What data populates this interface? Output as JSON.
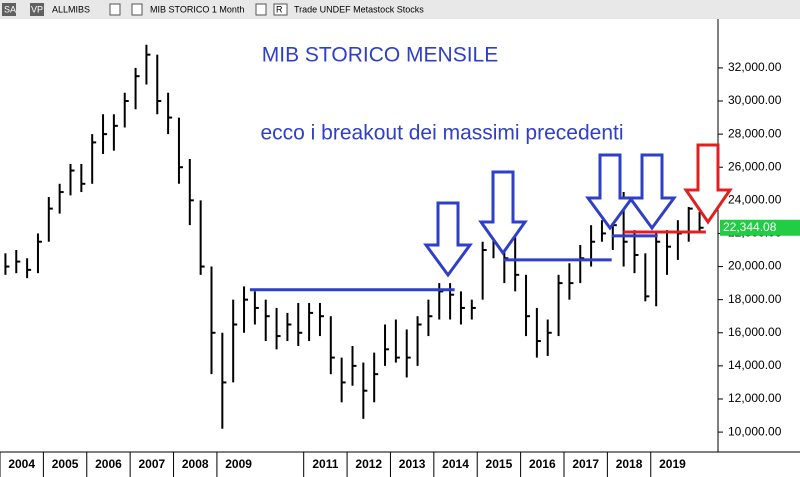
{
  "toolbar": [
    "SA",
    "VP",
    "ALLMIBS",
    "MIB STORICO 1 Month",
    "R",
    "Trade UNDEF Metastock Stocks"
  ],
  "chart_data": {
    "type": "ohlc",
    "title": "MIB STORICO MENSILE",
    "annotation": "ecco i breakout dei massimi precedenti",
    "x": [
      2004.125,
      2004.375,
      2004.625,
      2004.875,
      2005.125,
      2005.375,
      2005.625,
      2005.875,
      2006.125,
      2006.375,
      2006.625,
      2006.875,
      2007.125,
      2007.375,
      2007.625,
      2007.875,
      2008.125,
      2008.375,
      2008.625,
      2008.875,
      2009.125,
      2009.375,
      2009.625,
      2009.875,
      2010.125,
      2010.375,
      2010.625,
      2010.875,
      2011.125,
      2011.375,
      2011.625,
      2011.875,
      2012.125,
      2012.375,
      2012.625,
      2012.875,
      2013.125,
      2013.375,
      2013.625,
      2013.875,
      2014.125,
      2014.375,
      2014.625,
      2014.875,
      2015.125,
      2015.375,
      2015.625,
      2015.875,
      2016.125,
      2016.375,
      2016.625,
      2016.875,
      2017.125,
      2017.375,
      2017.625,
      2017.875,
      2018.125,
      2018.375,
      2018.625,
      2018.875,
      2019.125,
      2019.375,
      2019.625,
      2019.875,
      2020.125
    ],
    "high": [
      20800,
      21000,
      20500,
      22000,
      24200,
      25000,
      26200,
      26200,
      28000,
      29200,
      29200,
      30500,
      32000,
      33400,
      32800,
      30500,
      29000,
      26500,
      24000,
      20000,
      16000,
      18000,
      18800,
      18500,
      18000,
      17500,
      17200,
      17800,
      17800,
      17800,
      17000,
      14500,
      15200,
      14200,
      14800,
      16500,
      16800,
      16200,
      17000,
      18000,
      19000,
      19000,
      18500,
      18000,
      21500,
      23500,
      22500,
      22600,
      19500,
      17500,
      16800,
      19500,
      20200,
      21300,
      22500,
      22800,
      23800,
      24500,
      22200,
      20800,
      22000,
      22200,
      22800,
      23600,
      23300
    ],
    "low": [
      19500,
      19600,
      19300,
      19600,
      21500,
      23200,
      24300,
      24500,
      25000,
      26800,
      27000,
      28400,
      29500,
      31000,
      29200,
      28000,
      25000,
      22500,
      19500,
      13500,
      10200,
      13000,
      16000,
      16500,
      15500,
      15000,
      15500,
      15200,
      15500,
      15800,
      13500,
      11800,
      12800,
      10800,
      11800,
      14000,
      14200,
      13300,
      14000,
      15800,
      16800,
      16800,
      16500,
      16800,
      18000,
      20500,
      19000,
      18500,
      15800,
      14500,
      14600,
      15800,
      18000,
      19000,
      20000,
      21500,
      21000,
      20000,
      19600,
      17900,
      17600,
      19500,
      20400,
      21500,
      22000
    ],
    "close": [
      20000,
      20300,
      19800,
      21500,
      23500,
      24500,
      25800,
      25000,
      27500,
      28000,
      28500,
      30000,
      31500,
      32800,
      30000,
      29000,
      26000,
      24000,
      20000,
      16000,
      13000,
      16500,
      18000,
      17500,
      17000,
      15800,
      16500,
      16000,
      17200,
      17000,
      14500,
      13000,
      14000,
      12500,
      13500,
      15000,
      14500,
      14500,
      16500,
      17000,
      18500,
      18300,
      17500,
      17500,
      21000,
      22500,
      20500,
      19500,
      17000,
      15500,
      16000,
      19000,
      19000,
      20500,
      21500,
      22000,
      22500,
      21500,
      20700,
      18200,
      21500,
      21200,
      22000,
      23500,
      22344.08
    ],
    "last_value_label": "22,344.08",
    "levels": [
      {
        "value": 18600,
        "from": 2009.76,
        "to": 2014.48,
        "color": "#2f3fc8"
      },
      {
        "value": 20400,
        "from": 2015.6,
        "to": 2018.1,
        "color": "#2f3fc8"
      },
      {
        "value": 21850,
        "from": 2018.1,
        "to": 2019.16,
        "color": "#2f3fc8"
      },
      {
        "value": 22090,
        "from": 2018.37,
        "to": 2020.27,
        "color": "#e02020"
      }
    ],
    "xlim": [
      2004,
      2020.55
    ],
    "xticks": [
      2004,
      2005,
      2006,
      2007,
      2008,
      2009,
      2011,
      2012,
      2013,
      2014,
      2015,
      2016,
      2017,
      2018,
      2019
    ],
    "ylim": [
      8918,
      35800
    ],
    "yticks": [
      {
        "value": 10000,
        "label": "10,000.00"
      },
      {
        "value": 12000,
        "label": "12,000.00"
      },
      {
        "value": 14000,
        "label": "14,000.00"
      },
      {
        "value": 16000,
        "label": "16,000.00"
      },
      {
        "value": 18000,
        "label": "18,000.00"
      },
      {
        "value": 20000,
        "label": "20,000.00"
      },
      {
        "value": 22000,
        "label": "22,000.00"
      },
      {
        "value": 24000,
        "label": "24,000.00"
      },
      {
        "value": 26000,
        "label": "26,000.00"
      },
      {
        "value": 28000,
        "label": "28,000.00"
      },
      {
        "value": 30000,
        "label": "30,000.00"
      },
      {
        "value": 32000,
        "label": "32,000.00"
      }
    ],
    "bar_color": "#000000",
    "label_color": "#22cc44"
  }
}
